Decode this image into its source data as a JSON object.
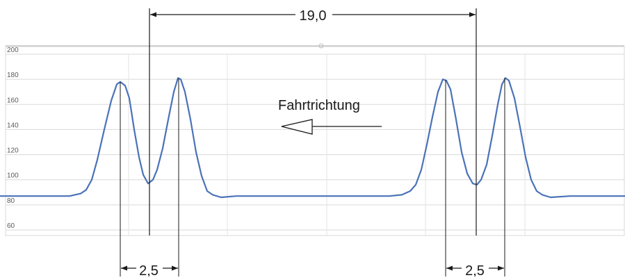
{
  "chart_data": {
    "type": "line",
    "title": "",
    "xlabel": "",
    "ylabel": "",
    "ylim": [
      60,
      200
    ],
    "yticks": [
      60,
      80,
      100,
      120,
      140,
      160,
      180,
      200
    ],
    "grid": true,
    "legend": "none",
    "colors": {
      "line": "#4a72b8",
      "grid": "#d9d9d9",
      "annotation": "#1a1a1a"
    },
    "series": [
      {
        "points": [
          [
            0,
            87
          ],
          [
            100,
            87
          ],
          [
            116,
            89
          ],
          [
            124,
            92
          ],
          [
            132,
            100
          ],
          [
            140,
            116
          ],
          [
            150,
            140
          ],
          [
            160,
            163
          ],
          [
            168,
            176
          ],
          [
            173,
            178
          ],
          [
            180,
            175
          ],
          [
            186,
            165
          ],
          [
            193,
            140
          ],
          [
            200,
            118
          ],
          [
            206,
            104
          ],
          [
            213,
            97
          ],
          [
            220,
            100
          ],
          [
            226,
            108
          ],
          [
            234,
            125
          ],
          [
            242,
            148
          ],
          [
            250,
            170
          ],
          [
            256,
            181
          ],
          [
            260,
            180
          ],
          [
            266,
            170
          ],
          [
            274,
            148
          ],
          [
            282,
            122
          ],
          [
            290,
            103
          ],
          [
            298,
            91
          ],
          [
            306,
            88
          ],
          [
            318,
            86
          ],
          [
            340,
            87
          ],
          [
            560,
            87
          ],
          [
            578,
            88
          ],
          [
            590,
            91
          ],
          [
            598,
            96
          ],
          [
            606,
            108
          ],
          [
            614,
            128
          ],
          [
            622,
            150
          ],
          [
            630,
            170
          ],
          [
            637,
            180
          ],
          [
            642,
            179
          ],
          [
            648,
            172
          ],
          [
            656,
            148
          ],
          [
            664,
            122
          ],
          [
            672,
            105
          ],
          [
            680,
            97
          ],
          [
            686,
            96
          ],
          [
            692,
            100
          ],
          [
            700,
            112
          ],
          [
            708,
            135
          ],
          [
            716,
            160
          ],
          [
            722,
            176
          ],
          [
            727,
            181
          ],
          [
            732,
            179
          ],
          [
            740,
            165
          ],
          [
            748,
            142
          ],
          [
            756,
            118
          ],
          [
            764,
            100
          ],
          [
            772,
            91
          ],
          [
            780,
            88
          ],
          [
            792,
            86
          ],
          [
            820,
            87
          ],
          [
            899,
            87
          ]
        ]
      }
    ],
    "annotations": {
      "direction_label": "Fahrtrichtung",
      "span_label": "19,0",
      "left_pair_label": "2,5",
      "right_pair_label": "2,5"
    }
  }
}
